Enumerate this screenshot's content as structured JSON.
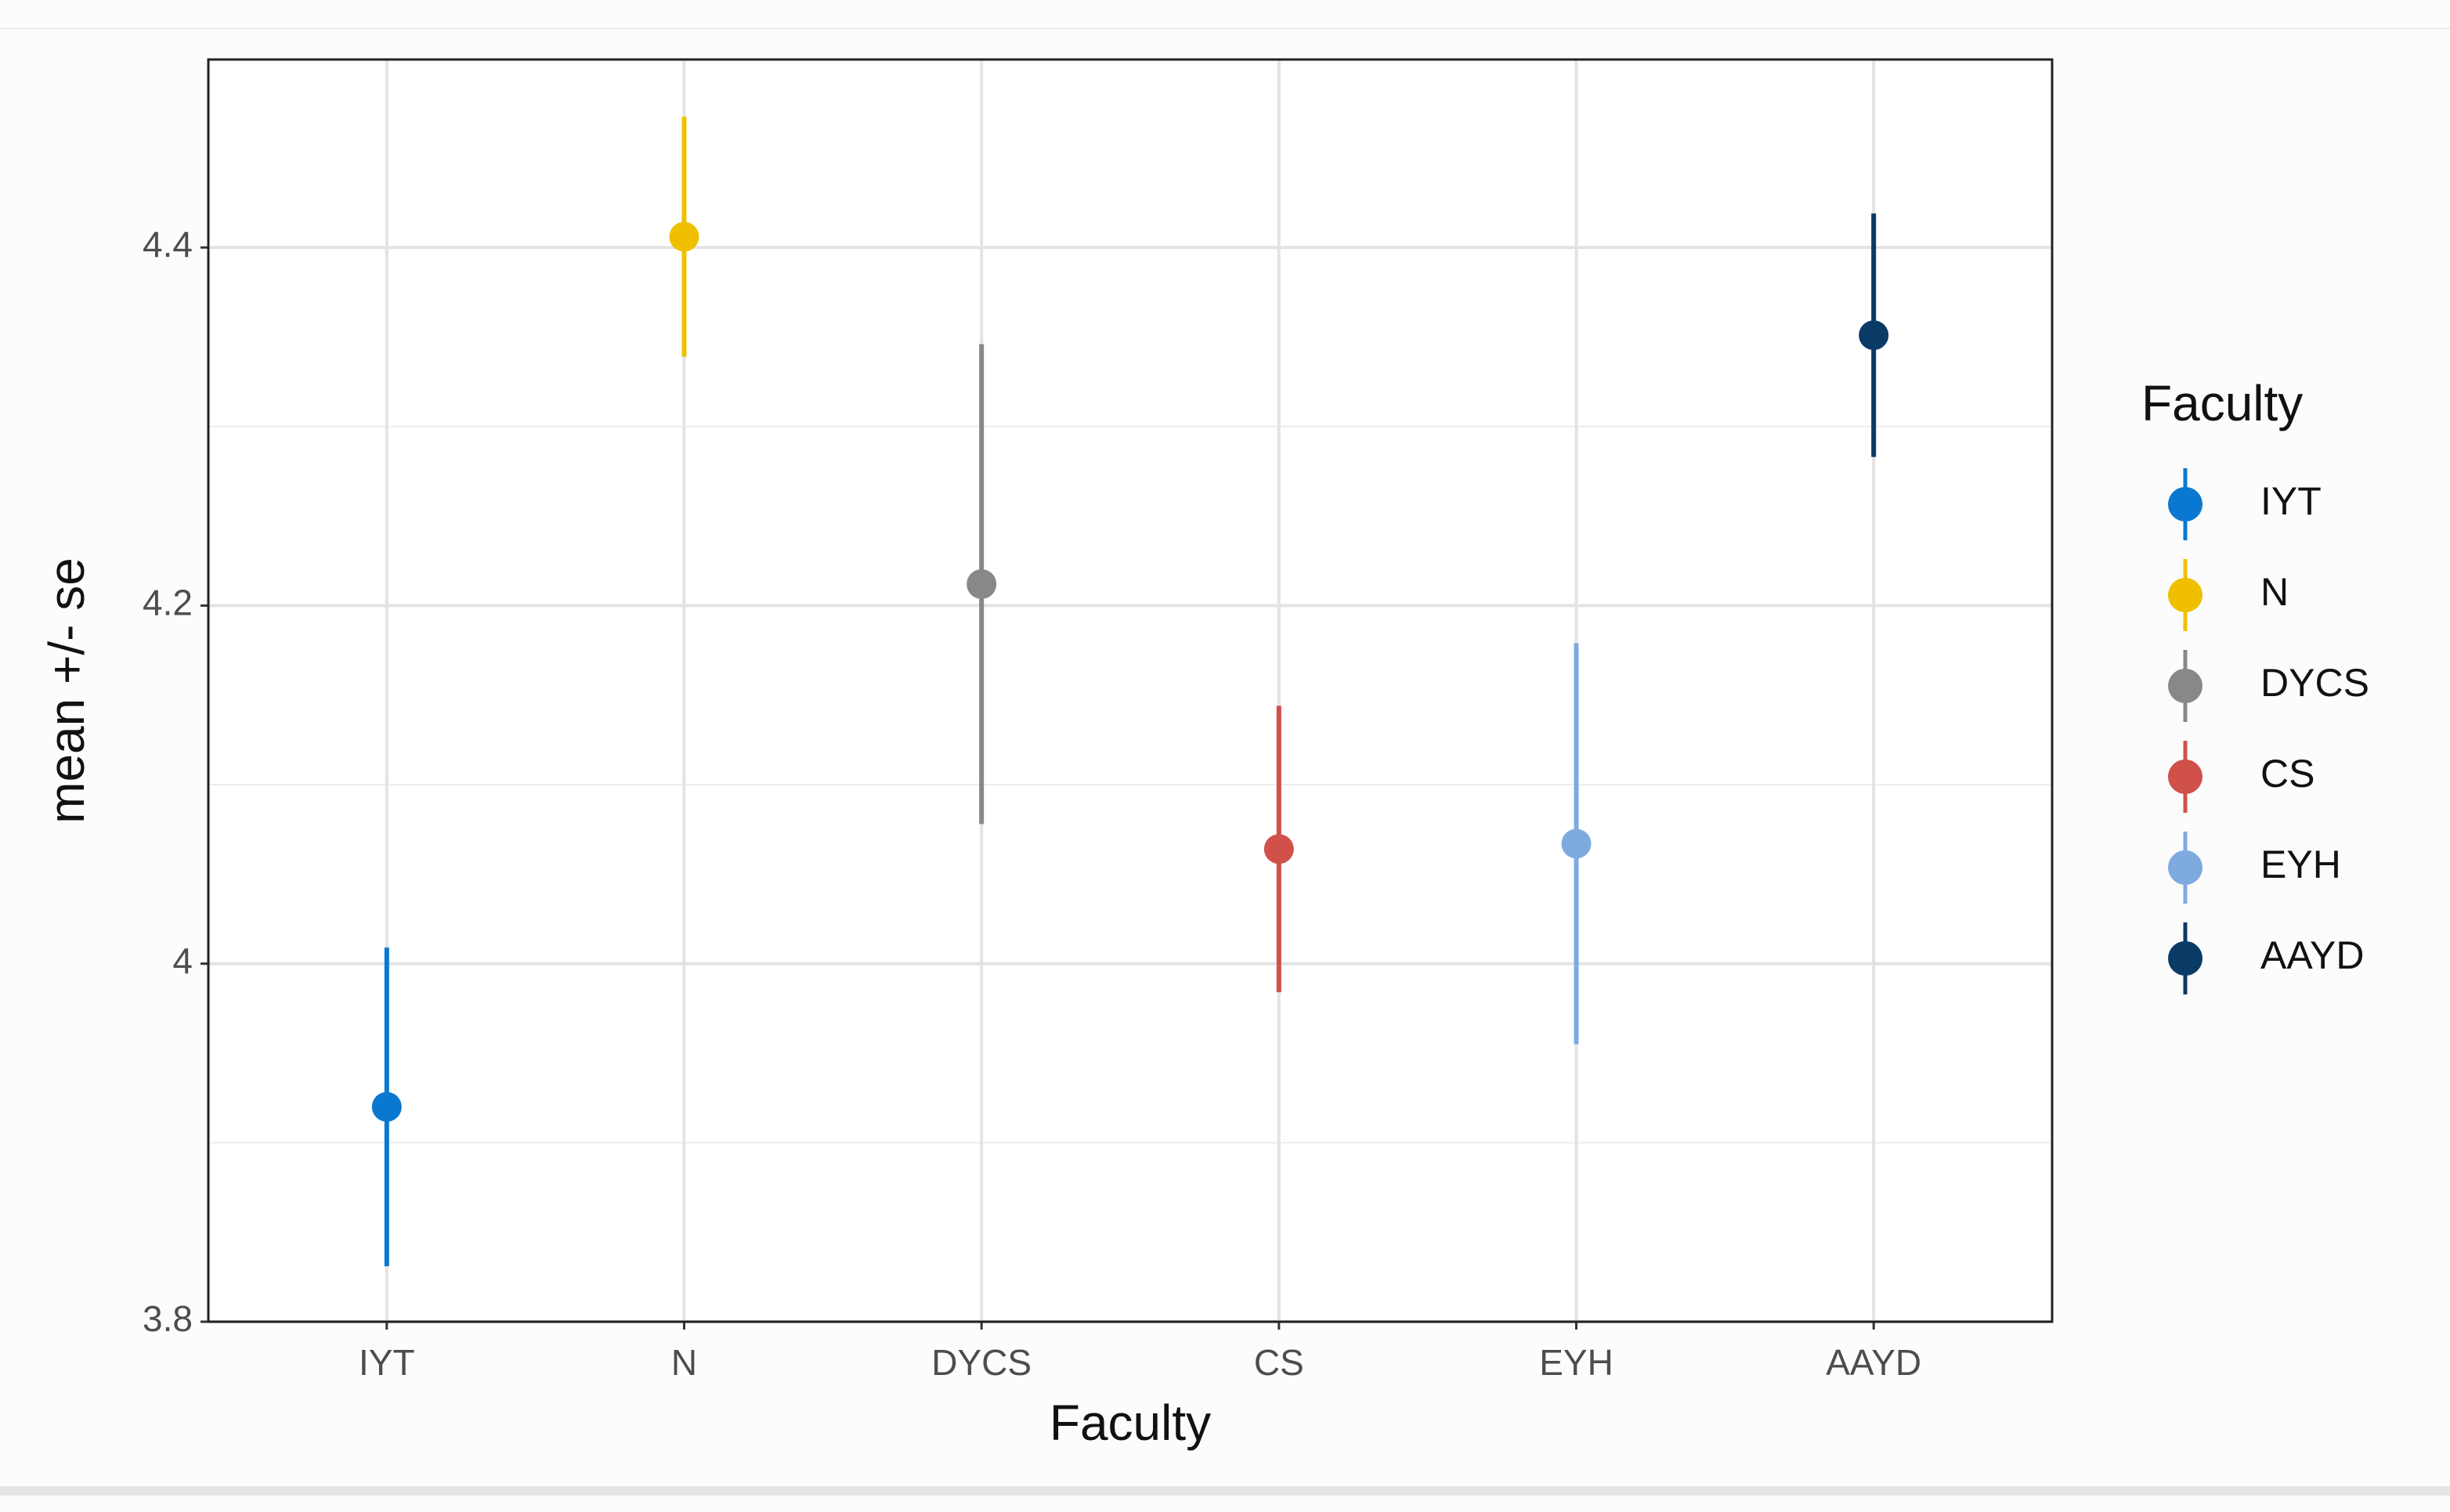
{
  "chart_data": {
    "type": "pointrange",
    "x_label": "Faculty",
    "y_label": "mean +/- se",
    "legend_title": "Faculty",
    "categories": [
      "IYT",
      "N",
      "DYCS",
      "CS",
      "EYH",
      "AAYD"
    ],
    "values": [
      3.92,
      4.406,
      4.212,
      4.064,
      4.067,
      4.351
    ],
    "errors": [
      0.089,
      0.067,
      0.134,
      0.08,
      0.112,
      0.068
    ],
    "colors": [
      "#0a78d0",
      "#f0c000",
      "#888888",
      "#d0504a",
      "#7eaae0",
      "#0a3a66"
    ],
    "ylim": [
      3.8,
      4.505
    ],
    "yticks": [
      3.8,
      4.0,
      4.2,
      4.4
    ],
    "minor_yticks": [
      3.9,
      4.1,
      4.3
    ],
    "grid": true,
    "legend_position": "right"
  }
}
